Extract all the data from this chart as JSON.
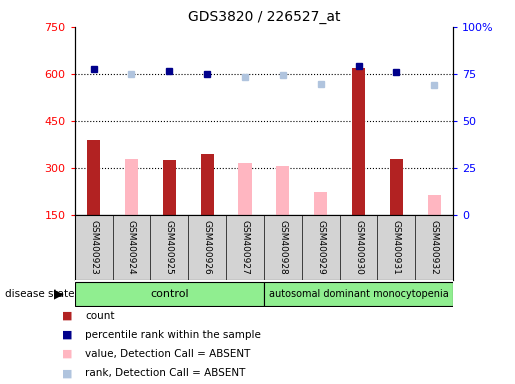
{
  "title": "GDS3820 / 226527_at",
  "samples": [
    "GSM400923",
    "GSM400924",
    "GSM400925",
    "GSM400926",
    "GSM400927",
    "GSM400928",
    "GSM400929",
    "GSM400930",
    "GSM400931",
    "GSM400932"
  ],
  "count_values": [
    390,
    null,
    325,
    345,
    null,
    null,
    null,
    620,
    330,
    null
  ],
  "absent_value_values": [
    null,
    330,
    null,
    null,
    315,
    305,
    225,
    null,
    null,
    215
  ],
  "percentile_rank_values": [
    615,
    null,
    610,
    600,
    null,
    null,
    null,
    625,
    605,
    null
  ],
  "absent_rank_values": [
    null,
    600,
    null,
    null,
    590,
    595,
    567,
    null,
    null,
    565
  ],
  "control_indices": [
    0,
    1,
    2,
    3,
    4
  ],
  "disease_indices": [
    5,
    6,
    7,
    8,
    9
  ],
  "ylim_left": [
    150,
    750
  ],
  "ylim_right": [
    0,
    100
  ],
  "yticks_left": [
    150,
    300,
    450,
    600,
    750
  ],
  "yticks_right": [
    0,
    25,
    50,
    75,
    100
  ],
  "ytick_labels_left": [
    "150",
    "300",
    "450",
    "600",
    "750"
  ],
  "ytick_labels_right": [
    "0",
    "25",
    "50",
    "75",
    "100%"
  ],
  "hlines": [
    300,
    450,
    600
  ],
  "count_color": "#b22222",
  "absent_value_color": "#ffb6c1",
  "percentile_rank_color": "#00008b",
  "absent_rank_color": "#b0c4de",
  "bg_color": "#d3d3d3",
  "group_color": "#90ee90",
  "legend_items": [
    {
      "label": "count",
      "color": "#b22222"
    },
    {
      "label": "percentile rank within the sample",
      "color": "#00008b"
    },
    {
      "label": "value, Detection Call = ABSENT",
      "color": "#ffb6c1"
    },
    {
      "label": "rank, Detection Call = ABSENT",
      "color": "#b0c4de"
    }
  ]
}
